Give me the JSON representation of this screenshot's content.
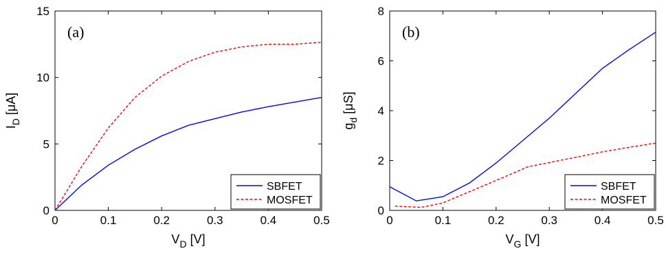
{
  "chart_data": [
    {
      "type": "line",
      "panel_label": "(a)",
      "ylabel": {
        "main": "I",
        "sub": "D",
        "unit": " [μA]"
      },
      "xlabel": {
        "main": "V",
        "sub": "D",
        "unit": " [V]"
      },
      "xlim": [
        0,
        0.5
      ],
      "ylim": [
        0,
        15
      ],
      "xticks": [
        "0",
        "0.1",
        "0.2",
        "0.3",
        "0.4",
        "0.5"
      ],
      "xtick_values": [
        0,
        0.1,
        0.2,
        0.3,
        0.4,
        0.5
      ],
      "yticks": [
        "0",
        "5",
        "10",
        "15"
      ],
      "ytick_values": [
        0,
        5,
        10,
        15
      ],
      "grid": false,
      "legend_position": "bottom-right",
      "series": [
        {
          "name": "SBFET",
          "color": "#0000ff",
          "style": "solid",
          "x": [
            0,
            0.05,
            0.1,
            0.15,
            0.2,
            0.25,
            0.3,
            0.35,
            0.4,
            0.45,
            0.5
          ],
          "y": [
            0,
            1.9,
            3.4,
            4.6,
            5.6,
            6.4,
            6.9,
            7.4,
            7.8,
            8.15,
            8.5
          ]
        },
        {
          "name": "MOSFET",
          "color": "#ff0000",
          "style": "dashed",
          "x": [
            0,
            0.05,
            0.1,
            0.15,
            0.2,
            0.25,
            0.3,
            0.35,
            0.4,
            0.45,
            0.5
          ],
          "y": [
            0,
            3.3,
            6.2,
            8.5,
            10.1,
            11.2,
            11.9,
            12.3,
            12.5,
            12.5,
            12.65
          ]
        }
      ]
    },
    {
      "type": "line",
      "panel_label": "(b)",
      "ylabel": {
        "main": "g",
        "sub": "d",
        "unit": " [μS]"
      },
      "xlabel": {
        "main": "V",
        "sub": "G",
        "unit": " [V]"
      },
      "xlim": [
        0,
        0.5
      ],
      "ylim": [
        0,
        8
      ],
      "xticks": [
        "0",
        "0.1",
        "0.2",
        "0.3",
        "0.4",
        "0.5"
      ],
      "xtick_values": [
        0,
        0.1,
        0.2,
        0.3,
        0.4,
        0.5
      ],
      "yticks": [
        "0",
        "2",
        "4",
        "6",
        "8"
      ],
      "ytick_values": [
        0,
        2,
        4,
        6,
        8
      ],
      "grid": false,
      "legend_position": "bottom-right",
      "series": [
        {
          "name": "SBFET",
          "color": "#0000ff",
          "style": "solid",
          "x": [
            0,
            0.05,
            0.1,
            0.15,
            0.2,
            0.25,
            0.3,
            0.35,
            0.4,
            0.45,
            0.5
          ],
          "y": [
            0.95,
            0.38,
            0.55,
            1.1,
            1.9,
            2.8,
            3.7,
            4.7,
            5.7,
            6.45,
            7.15
          ]
        },
        {
          "name": "MOSFET",
          "color": "#ff0000",
          "style": "dashed",
          "x": [
            0.01,
            0.06,
            0.1,
            0.15,
            0.2,
            0.26,
            0.3,
            0.35,
            0.4,
            0.45,
            0.5
          ],
          "y": [
            0.17,
            0.12,
            0.3,
            0.75,
            1.2,
            1.75,
            1.92,
            2.13,
            2.35,
            2.53,
            2.7
          ]
        }
      ]
    }
  ]
}
